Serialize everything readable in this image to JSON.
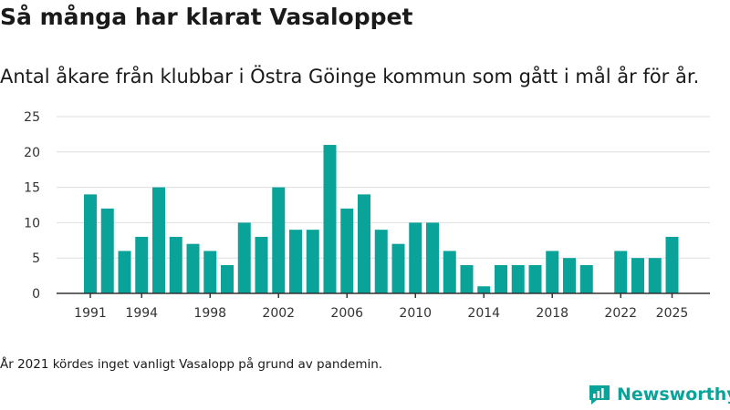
{
  "title": "Så många har klarat Vasaloppet",
  "subtitle": "Antal åkare från klubbar i Östra Göinge kommun som gått i mål år för år.",
  "footnote": "År 2021 kördes inget vanligt Vasalopp på grund av pandemin.",
  "brand": "Newsworthy",
  "colors": {
    "bar": "#0aa39a",
    "grid": "#dddddd",
    "axis": "#333333"
  },
  "chart_data": {
    "type": "bar",
    "title": "Så många har klarat Vasaloppet",
    "subtitle": "Antal åkare från klubbar i Östra Göinge kommun som gått i mål år för år.",
    "xlabel": "",
    "ylabel": "",
    "ylim": [
      0,
      25
    ],
    "yticks": [
      0,
      5,
      10,
      15,
      20,
      25
    ],
    "xticks": [
      1991,
      1994,
      1998,
      2002,
      2006,
      2010,
      2014,
      2018,
      2022,
      2025
    ],
    "grid": "horizontal",
    "legend": "none",
    "categories": [
      1991,
      1992,
      1993,
      1994,
      1995,
      1996,
      1997,
      1998,
      1999,
      2000,
      2001,
      2002,
      2003,
      2004,
      2005,
      2006,
      2007,
      2008,
      2009,
      2010,
      2011,
      2012,
      2013,
      2014,
      2015,
      2016,
      2017,
      2018,
      2019,
      2020,
      2021,
      2022,
      2023,
      2024,
      2025
    ],
    "values": [
      14,
      12,
      6,
      8,
      15,
      8,
      7,
      6,
      4,
      10,
      8,
      15,
      9,
      9,
      21,
      12,
      14,
      9,
      7,
      10,
      10,
      6,
      4,
      1,
      4,
      4,
      4,
      6,
      5,
      4,
      null,
      6,
      5,
      5,
      8
    ]
  }
}
